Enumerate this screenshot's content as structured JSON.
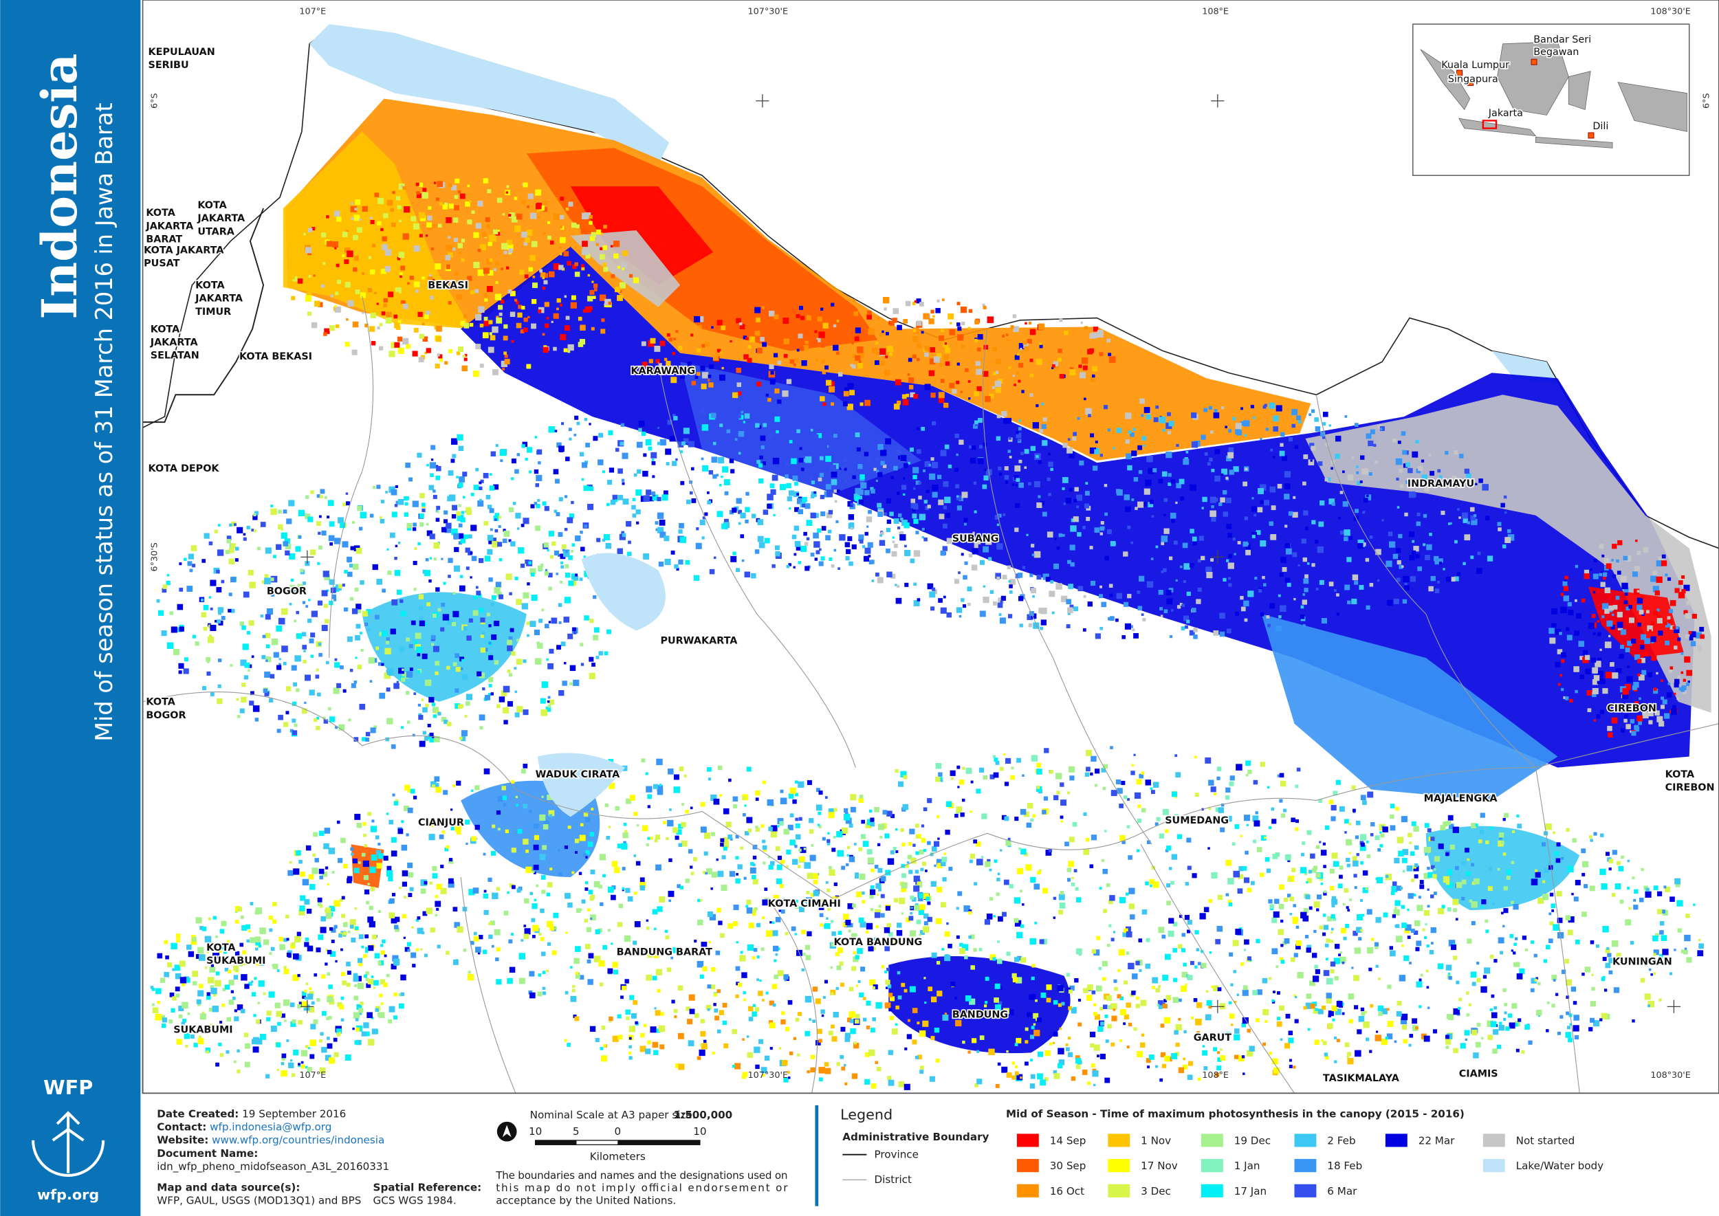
{
  "sidebar": {
    "title": "Indonesia",
    "subtitle": "Mid of season status as of 31 March 2016 in Jawa Barat",
    "logo": "WFP",
    "url": "wfp.org"
  },
  "graticule": {
    "top": [
      "107°E",
      "107°30'E",
      "108°E",
      "108°30'E"
    ],
    "bottom": [
      "107°E",
      "107°30'E",
      "108°E",
      "108°30'E"
    ],
    "left": [
      "6°S",
      "6°30'S"
    ],
    "right": [
      "6°S"
    ]
  },
  "map_labels": [
    {
      "lines": [
        "KEPULAUAN",
        "SERIBU"
      ]
    },
    {
      "lines": [
        "KOTA",
        "JAKARTA",
        "BARAT"
      ]
    },
    {
      "lines": [
        "KOTA",
        "JAKARTA",
        "UTARA"
      ]
    },
    {
      "lines": [
        "KOTA JAKARTA",
        "PUSAT"
      ]
    },
    {
      "lines": [
        "KOTA",
        "JAKARTA",
        "TIMUR"
      ]
    },
    {
      "lines": [
        "KOTA",
        "JAKARTA",
        "SELATAN"
      ]
    },
    {
      "lines": [
        "KOTA BEKASI"
      ]
    },
    {
      "lines": [
        "BEKASI"
      ]
    },
    {
      "lines": [
        "KARAWANG"
      ]
    },
    {
      "lines": [
        "KOTA DEPOK"
      ]
    },
    {
      "lines": [
        "BOGOR"
      ]
    },
    {
      "lines": [
        "PURWAKARTA"
      ]
    },
    {
      "lines": [
        "SUBANG"
      ]
    },
    {
      "lines": [
        "INDRAMAYU"
      ]
    },
    {
      "lines": [
        "CIREBON"
      ]
    },
    {
      "lines": [
        "KOTA",
        "CIREBON"
      ]
    },
    {
      "lines": [
        "KOTA",
        "BOGOR"
      ]
    },
    {
      "lines": [
        "WADUK CIRATA"
      ]
    },
    {
      "lines": [
        "CIANJUR"
      ]
    },
    {
      "lines": [
        "SUMEDANG"
      ]
    },
    {
      "lines": [
        "MAJALENGKA"
      ]
    },
    {
      "lines": [
        "KOTA CIMAHI"
      ]
    },
    {
      "lines": [
        "KOTA BANDUNG"
      ]
    },
    {
      "lines": [
        "BANDUNG BARAT"
      ]
    },
    {
      "lines": [
        "KOTA",
        "SUKABUMI"
      ]
    },
    {
      "lines": [
        "SUKABUMI"
      ]
    },
    {
      "lines": [
        "BANDUNG"
      ]
    },
    {
      "lines": [
        "GARUT"
      ]
    },
    {
      "lines": [
        "TASIKMALAYA"
      ]
    },
    {
      "lines": [
        "CIAMIS"
      ]
    },
    {
      "lines": [
        "KUNINGAN"
      ]
    }
  ],
  "inset_labels": [
    {
      "lines": [
        "Bandar Seri",
        "Begawan"
      ]
    },
    {
      "lines": [
        "Kuala Lumpur"
      ]
    },
    {
      "lines": [
        "Singapura"
      ]
    },
    {
      "lines": [
        "Jakarta"
      ]
    },
    {
      "lines": [
        "Dili"
      ]
    }
  ],
  "footer": {
    "date": {
      "label": "Date Created:",
      "value": "19 September 2016"
    },
    "contact": {
      "label": "Contact:",
      "value": "wfp.indonesia@wfp.org"
    },
    "website": {
      "label": "Website:",
      "value": "www.wfp.org/countries/indonesia"
    },
    "document": {
      "label": "Document Name:",
      "value": "idn_wfp_pheno_midofseason_A3L_20160331"
    },
    "source": {
      "label": "Map and data source(s):",
      "value": "WFP, GAUL, USGS (MOD13Q1) and BPS"
    },
    "reference": {
      "label": "Spatial Reference:",
      "value": "GCS WGS 1984."
    }
  },
  "scale": {
    "label": "Nominal Scale at A3 paper size:",
    "value": "1:500,000",
    "ticks": [
      "10",
      "5",
      "0",
      "10"
    ],
    "unit": "Kilometers",
    "disclaimer": [
      "The boundaries and names and the designations used on",
      "this map do not imply official endorsement or",
      "acceptance by the United Nations."
    ]
  },
  "legend": {
    "title": "Legend",
    "boundary_title": "Administrative Boundary",
    "province": "Province",
    "district": "District",
    "season_title": "Mid of Season - Time of maximum photosynthesis in the canopy (2015 - 2016)",
    "classes": [
      {
        "label": "14 Sep",
        "color": "#ff0000"
      },
      {
        "label": "30 Sep",
        "color": "#ff5a00"
      },
      {
        "label": "16 Oct",
        "color": "#ff9200"
      },
      {
        "label": "1 Nov",
        "color": "#ffc400"
      },
      {
        "label": "17 Nov",
        "color": "#ffff00"
      },
      {
        "label": "3 Dec",
        "color": "#d8f54a"
      },
      {
        "label": "19 Dec",
        "color": "#a6f08e"
      },
      {
        "label": "1 Jan",
        "color": "#80f2be"
      },
      {
        "label": "17 Jan",
        "color": "#00f0f5"
      },
      {
        "label": "2 Feb",
        "color": "#3cc8f2"
      },
      {
        "label": "18 Feb",
        "color": "#3a96f5"
      },
      {
        "label": "6 Mar",
        "color": "#3350ee"
      },
      {
        "label": "22 Mar",
        "color": "#0000e0"
      },
      {
        "label": "Not started",
        "color": "#c6c6c6"
      },
      {
        "label": "Lake/Water body",
        "color": "#bfe3f8"
      }
    ]
  }
}
